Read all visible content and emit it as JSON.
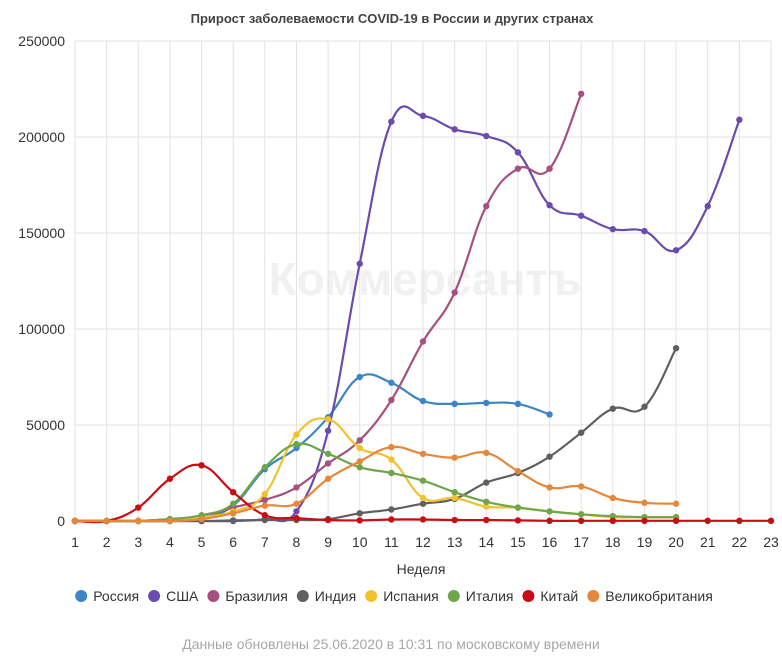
{
  "watermark": "Коммерсантъ",
  "footnote": "Данные обновлены 25.06.2020 в 10:31 по московскому времени",
  "chart_data": {
    "type": "line",
    "title": "Прирост заболеваемости COVID-19 в России и других странах",
    "xlabel": "Неделя",
    "ylabel": "",
    "x": [
      1,
      2,
      3,
      4,
      5,
      6,
      7,
      8,
      9,
      10,
      11,
      12,
      13,
      14,
      15,
      16,
      17,
      18,
      19,
      20,
      21,
      22,
      23
    ],
    "xlim": [
      1,
      23
    ],
    "ylim": [
      0,
      250000
    ],
    "yticks": [
      0,
      50000,
      100000,
      150000,
      200000,
      250000
    ],
    "grid": true,
    "legend_position": "bottom",
    "series": [
      {
        "name": "Россия",
        "color": "#3c85c6",
        "values": [
          0,
          0,
          0,
          100,
          1500,
          8000,
          27000,
          38000,
          54000,
          75000,
          72000,
          62500,
          61000,
          61500,
          61000,
          55500,
          null,
          null,
          null,
          null,
          null,
          null,
          null
        ]
      },
      {
        "name": "США",
        "color": "#6a4bb0",
        "values": [
          0,
          0,
          0,
          0,
          0,
          0,
          1000,
          5000,
          47000,
          134000,
          208000,
          211000,
          204000,
          200500,
          192000,
          164500,
          159000,
          152000,
          151000,
          141000,
          164000,
          209000,
          null
        ]
      },
      {
        "name": "Бразилия",
        "color": "#a6507f",
        "values": [
          0,
          0,
          0,
          1000,
          2000,
          7000,
          11000,
          17500,
          30000,
          42000,
          63000,
          93500,
          119000,
          164000,
          183500,
          183500,
          222500,
          null,
          null,
          null,
          null,
          null,
          null
        ]
      },
      {
        "name": "Индия",
        "color": "#606060",
        "values": [
          0,
          0,
          0,
          0,
          0,
          300,
          500,
          500,
          1000,
          4000,
          6000,
          9000,
          11500,
          20000,
          25000,
          33500,
          46000,
          58500,
          59500,
          90000,
          null,
          null,
          null
        ]
      },
      {
        "name": "Испания",
        "color": "#f2c12e",
        "values": [
          0,
          0,
          0,
          500,
          2000,
          5000,
          14000,
          45000,
          53000,
          38000,
          32000,
          12000,
          12000,
          7500,
          7000,
          5000,
          3500,
          2000,
          2000,
          2000,
          null,
          null,
          null
        ]
      },
      {
        "name": "Италия",
        "color": "#6fa64a",
        "values": [
          0,
          0,
          0,
          1000,
          3000,
          9000,
          28000,
          40000,
          35000,
          28000,
          25000,
          21000,
          15000,
          10000,
          7000,
          5000,
          3500,
          2500,
          2000,
          2000,
          null,
          null,
          null
        ]
      },
      {
        "name": "Китай",
        "color": "#c80e14",
        "values": [
          0,
          0,
          7000,
          22000,
          29000,
          15000,
          3000,
          1500,
          500,
          300,
          800,
          800,
          500,
          500,
          300,
          100,
          100,
          100,
          100,
          100,
          100,
          100,
          100
        ]
      },
      {
        "name": "Великобритания",
        "color": "#e5883b",
        "values": [
          0,
          0,
          0,
          0,
          1000,
          4000,
          8000,
          9000,
          22000,
          31000,
          38500,
          35000,
          33000,
          35500,
          26000,
          17500,
          18000,
          12000,
          9500,
          9000,
          null,
          null,
          null
        ]
      }
    ]
  }
}
